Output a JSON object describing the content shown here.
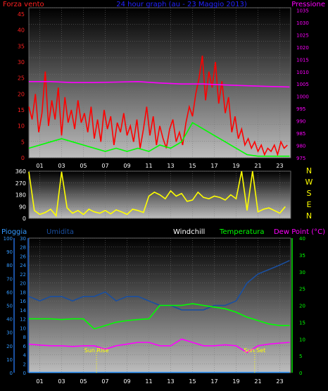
{
  "chart_data": [
    {
      "type": "line",
      "title": "24 hour graph (au - 23 Maggio 2013)",
      "left_label": "Forza vento",
      "right_label": "Pressione",
      "y_left_ticks": [
        "0",
        "5",
        "10",
        "15",
        "20",
        "25",
        "30",
        "35",
        "40",
        "45"
      ],
      "y_left_range": [
        0,
        47
      ],
      "y_right_ticks": [
        "975",
        "980",
        "985",
        "990",
        "995",
        "1000",
        "1005",
        "1010",
        "1015",
        "1020",
        "1025",
        "1030",
        "1035"
      ],
      "y_right_range": [
        975,
        1036
      ],
      "x_ticks": [
        "01",
        "03",
        "05",
        "07",
        "09",
        "11",
        "13",
        "15",
        "17",
        "19",
        "21",
        "23"
      ],
      "series": [
        {
          "color": "#ff0000",
          "x": [
            0,
            0.3,
            0.6,
            0.9,
            1.2,
            1.5,
            1.8,
            2.1,
            2.4,
            2.7,
            3.0,
            3.3,
            3.6,
            3.9,
            4.2,
            4.5,
            4.8,
            5.1,
            5.4,
            5.7,
            6.0,
            6.3,
            6.6,
            6.9,
            7.2,
            7.5,
            7.8,
            8.1,
            8.4,
            8.7,
            9.0,
            9.3,
            9.6,
            9.9,
            10.2,
            10.5,
            10.8,
            11.1,
            11.4,
            11.7,
            12.0,
            12.3,
            12.6,
            12.9,
            13.2,
            13.5,
            13.8,
            14.1,
            14.4,
            14.7,
            15.0,
            15.3,
            15.6,
            15.9,
            16.2,
            16.5,
            16.8,
            17.1,
            17.4,
            17.7,
            18.0,
            18.3,
            18.6,
            18.9,
            19.2,
            19.5,
            19.8,
            20.1,
            20.4,
            20.7,
            21.0,
            21.3,
            21.6,
            21.9,
            22.2,
            22.5,
            22.8,
            23.1,
            23.4,
            23.7
          ],
          "y": [
            16,
            12,
            20,
            8,
            14,
            27,
            10,
            18,
            12,
            22,
            7,
            19,
            11,
            15,
            9,
            18,
            11,
            14,
            8,
            16,
            6,
            12,
            5,
            15,
            9,
            13,
            4,
            11,
            8,
            14,
            7,
            10,
            5,
            12,
            3,
            9,
            16,
            7,
            13,
            4,
            10,
            6,
            3,
            9,
            12,
            5,
            8,
            4,
            11,
            16,
            13,
            20,
            25,
            32,
            18,
            27,
            22,
            30,
            17,
            24,
            14,
            19,
            8,
            13,
            6,
            9,
            4,
            6,
            3,
            5,
            2,
            4,
            1,
            3,
            2,
            4,
            1,
            5,
            3,
            4
          ]
        },
        {
          "color": "#00ff00",
          "x": [
            0,
            1,
            2,
            3,
            4,
            5,
            6,
            7,
            8,
            9,
            10,
            11,
            12,
            13,
            14,
            15,
            16,
            17,
            18,
            19,
            20,
            21,
            22,
            23,
            23.9
          ],
          "y": [
            3,
            4,
            5,
            6,
            5,
            4,
            3,
            2,
            3,
            2,
            3,
            2,
            4,
            3,
            5,
            11,
            9,
            7,
            5,
            3,
            1,
            0.5,
            0.5,
            0.5,
            0.5
          ]
        },
        {
          "color": "#ff00ff",
          "axis": "right",
          "x": [
            0,
            2,
            4,
            6,
            8,
            10,
            12,
            14,
            16,
            18,
            20,
            22,
            23.9
          ],
          "y": [
            1006,
            1006,
            1005.6,
            1005.6,
            1005.8,
            1006,
            1005.4,
            1005,
            1005,
            1004.6,
            1004.3,
            1004,
            1003.8
          ]
        }
      ]
    },
    {
      "type": "scatter",
      "left_label": "",
      "y_left_ticks": [
        "0",
        "90",
        "180",
        "270",
        "360"
      ],
      "y_left_range": [
        0,
        360
      ],
      "right_ticks": [
        "N",
        "W",
        "S",
        "E",
        "N"
      ],
      "x_ticks": [],
      "series": [
        {
          "color": "#ffff00",
          "x": [
            0,
            0.5,
            1,
            1.5,
            2,
            2.5,
            3,
            3.5,
            4,
            4.5,
            5,
            5.5,
            6,
            6.5,
            7,
            7.5,
            8,
            8.5,
            9,
            9.5,
            10,
            10.5,
            11,
            11.5,
            12,
            12.5,
            13,
            13.5,
            14,
            14.5,
            15,
            15.5,
            16,
            16.5,
            17,
            17.5,
            18,
            18.5,
            19,
            19.5,
            20,
            20.5,
            21,
            21.5,
            22,
            22.5,
            23,
            23.5
          ],
          "y": [
            355,
            60,
            30,
            45,
            70,
            20,
            355,
            80,
            40,
            60,
            30,
            70,
            50,
            40,
            60,
            35,
            65,
            50,
            30,
            70,
            60,
            45,
            170,
            200,
            180,
            150,
            210,
            170,
            190,
            130,
            140,
            200,
            160,
            150,
            170,
            160,
            140,
            180,
            150,
            360,
            60,
            360,
            50,
            70,
            80,
            60,
            40,
            90
          ]
        }
      ]
    },
    {
      "type": "line",
      "left_label": "Pioggia",
      "series_labels": [
        "Umidita",
        "Windchill",
        "Temperatura",
        "Dew Point (°C)"
      ],
      "y_far_left_ticks": [
        "0",
        "10",
        "20",
        "30",
        "40",
        "50",
        "60",
        "70",
        "80",
        "90",
        "100"
      ],
      "y_left_ticks": [
        "0",
        "2",
        "4",
        "6",
        "8",
        "10",
        "12",
        "14",
        "16",
        "18",
        "20",
        "22",
        "24",
        "26",
        "28",
        "30"
      ],
      "y_left_range": [
        0,
        30
      ],
      "y_right_ticks": [
        "0",
        "5",
        "10",
        "15",
        "20",
        "25",
        "30",
        "35",
        "40"
      ],
      "y_right_range": [
        0,
        40
      ],
      "x_ticks": [
        "01",
        "03",
        "05",
        "07",
        "09",
        "11",
        "13",
        "15",
        "17",
        "19",
        "21",
        "23"
      ],
      "annotations": [
        "Sun Rise",
        "Sun Set"
      ],
      "series": [
        {
          "color": "#1a4fa0",
          "axis": "left",
          "x": [
            0,
            1,
            2,
            3,
            4,
            5,
            6,
            7,
            8,
            9,
            10,
            11,
            12,
            13,
            14,
            15,
            16,
            17,
            18,
            19,
            20,
            21,
            22,
            23,
            23.9
          ],
          "y": [
            17,
            16,
            17,
            17,
            16,
            17,
            17,
            18,
            16,
            17,
            17,
            16,
            15,
            15,
            14,
            14,
            14,
            15,
            15,
            16,
            20,
            22,
            23,
            24,
            25
          ]
        },
        {
          "color": "#00ff00",
          "axis": "right",
          "x": [
            0,
            1,
            2,
            3,
            4,
            5,
            6,
            7,
            8,
            9,
            10,
            11,
            12,
            13,
            14,
            15,
            16,
            17,
            18,
            19,
            20,
            21,
            22,
            23,
            23.9
          ],
          "y": [
            16,
            16,
            16,
            15.8,
            16,
            16,
            13,
            14,
            15,
            15.5,
            15.8,
            16,
            20,
            20,
            20,
            20.5,
            20,
            19.5,
            19,
            18,
            16.5,
            15.5,
            14.5,
            14,
            14
          ]
        },
        {
          "color": "#ff00ff",
          "axis": "right",
          "x": [
            0,
            1,
            2,
            3,
            4,
            5,
            6,
            7,
            8,
            9,
            10,
            11,
            12,
            13,
            14,
            15,
            16,
            17,
            18,
            19,
            20,
            21,
            22,
            23,
            23.9
          ],
          "y": [
            8.5,
            8.2,
            8,
            8,
            7.8,
            8,
            8,
            7,
            8,
            8.5,
            9,
            9,
            8,
            8,
            10,
            9,
            8,
            8,
            8.3,
            8,
            6,
            8,
            8.5,
            8.8,
            9
          ]
        },
        {
          "color": "#3399ff",
          "axis": "far",
          "x": [
            0,
            23.9
          ],
          "y": [
            0.2,
            0.2
          ]
        }
      ]
    }
  ]
}
